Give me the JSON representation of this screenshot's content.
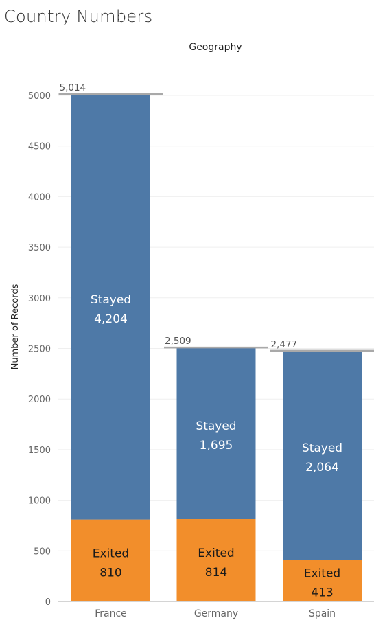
{
  "chart_data": {
    "type": "bar",
    "stacked": true,
    "title": "Country Numbers",
    "column_header": "Geography",
    "ylabel": "Number of Records",
    "ylim": [
      0,
      5000
    ],
    "yticks": [
      0,
      500,
      1000,
      1500,
      2000,
      2500,
      3000,
      3500,
      4000,
      4500,
      5000
    ],
    "categories": [
      "France",
      "Germany",
      "Spain"
    ],
    "series": [
      {
        "name": "Exited",
        "values": [
          810,
          814,
          413
        ],
        "display": [
          "810",
          "814",
          "413"
        ],
        "color": "#f28e2b",
        "label_color": "#1a1a1a"
      },
      {
        "name": "Stayed",
        "values": [
          4204,
          1695,
          2064
        ],
        "display": [
          "4,204",
          "1,695",
          "2,064"
        ],
        "color": "#4e79a7",
        "label_color": "#ffffff"
      }
    ],
    "totals": [
      5014,
      2509,
      2477
    ],
    "totals_display": [
      "5,014",
      "2,509",
      "2,477"
    ],
    "grid": true,
    "colors": {
      "axis": "#d4d4d4",
      "grid": "#efefef",
      "total_line": "#a9a9a9"
    }
  }
}
